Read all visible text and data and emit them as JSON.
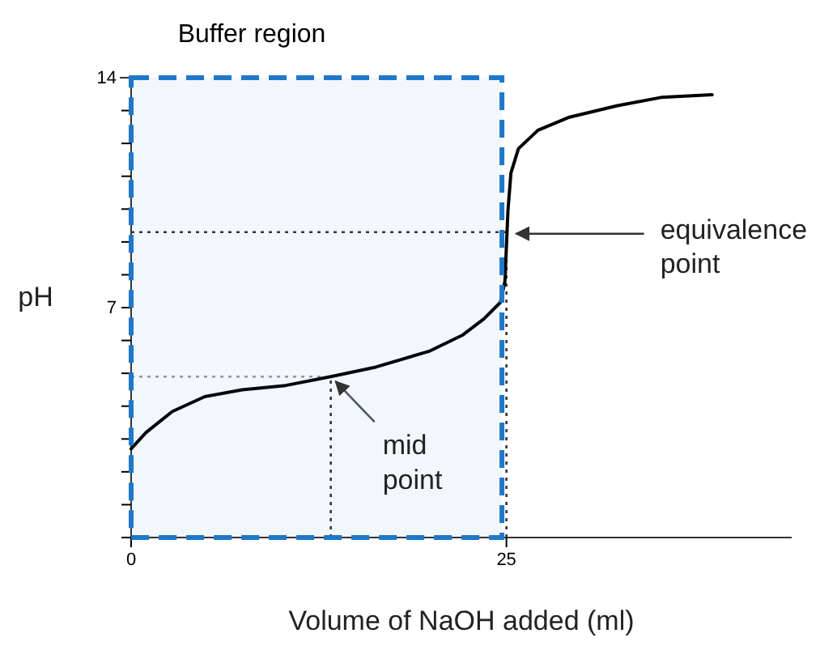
{
  "chart_data": {
    "type": "line",
    "xlabel": "Volume of NaOH added (ml)",
    "ylabel": "pH",
    "series": [
      {
        "color": "#000000",
        "x": [
          0,
          1,
          2.75,
          4.9,
          7.4,
          10.3,
          13.3,
          16.3,
          19.9,
          22.1,
          23.5,
          24.6,
          24.9,
          25.1,
          25.3,
          25.8,
          27.1,
          29.2,
          32.4,
          35.3,
          38.7
        ],
        "values": [
          2.7,
          3.2,
          3.84,
          4.29,
          4.5,
          4.63,
          4.9,
          5.19,
          5.68,
          6.17,
          6.66,
          7.16,
          7.8,
          9.95,
          11.1,
          11.84,
          12.4,
          12.8,
          13.15,
          13.4,
          13.48
        ]
      }
    ],
    "xlim": [
      0,
      44
    ],
    "ylim": [
      0,
      14
    ],
    "xticks": [
      0,
      25
    ],
    "yticks": [
      {
        "value": 0,
        "label": null
      },
      {
        "value": 1,
        "label": null
      },
      {
        "value": 2,
        "label": null
      },
      {
        "value": 3,
        "label": null
      },
      {
        "value": 4,
        "label": null
      },
      {
        "value": 5,
        "label": null
      },
      {
        "value": 6,
        "label": null
      },
      7,
      {
        "value": 8,
        "label": null
      },
      {
        "value": 9,
        "label": null
      },
      {
        "value": 10,
        "label": null
      },
      {
        "value": 11,
        "label": null
      },
      {
        "value": 12,
        "label": null
      },
      {
        "value": 13,
        "label": null
      },
      14
    ],
    "grid": false,
    "marker": "none",
    "line_style": "solid",
    "bands": [
      {
        "axis": "x",
        "from": 0,
        "to": 24.7,
        "label": "Buffer region",
        "color": "#1f78c8"
      }
    ],
    "ref_lines": [
      {
        "axis": "y",
        "value": 9.3,
        "color": "#333333",
        "line_style": "dotted"
      },
      {
        "axis": "x",
        "value": 25,
        "color": "#333333",
        "line_style": "dotted"
      },
      {
        "axis": "y",
        "value": 4.9,
        "color": "#999999",
        "line_style": "dotted"
      },
      {
        "axis": "x",
        "value": 13.3,
        "color": "#333333",
        "line_style": "dotted"
      }
    ],
    "annotations": [
      {
        "text": "equivalence point",
        "x": 25,
        "y": 9.3
      },
      {
        "text": "mid point",
        "x": 13.3,
        "y": 4.9
      }
    ]
  }
}
